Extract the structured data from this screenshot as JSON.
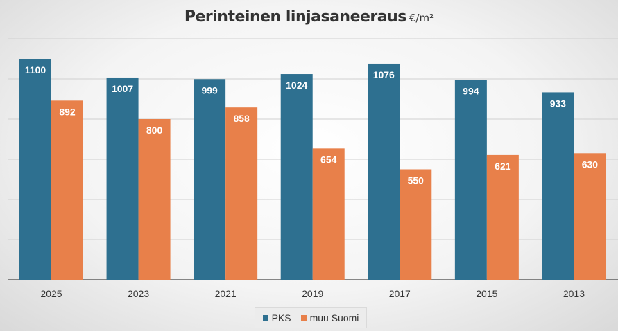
{
  "chart_data": {
    "type": "bar",
    "title": "Perinteinen linjasaneeraus",
    "title_unit": "€/m²",
    "categories": [
      "2025",
      "2023",
      "2021",
      "2019",
      "2017",
      "2015",
      "2013"
    ],
    "series": [
      {
        "name": "PKS",
        "values": [
          1100,
          1007,
          999,
          1024,
          1076,
          994,
          933
        ],
        "color": "#2e7090"
      },
      {
        "name": "muu Suomi",
        "values": [
          892,
          800,
          858,
          654,
          550,
          621,
          630
        ],
        "color": "#e8804a"
      }
    ],
    "ylim": [
      0,
      1200
    ],
    "grid": true,
    "legend_position": "bottom"
  }
}
